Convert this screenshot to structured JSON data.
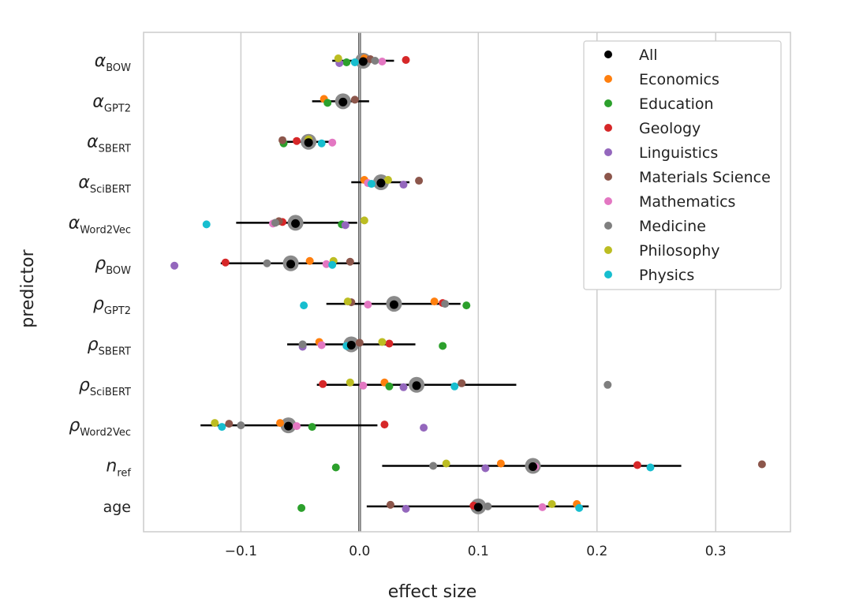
{
  "chart_data": {
    "type": "scatter",
    "title": "",
    "xlabel": "effect size",
    "ylabel": "predictor",
    "xlim": [
      -0.182,
      0.363
    ],
    "xticks": [
      -0.1,
      0.0,
      0.1,
      0.2,
      0.3
    ],
    "xtick_labels": [
      "−0.1",
      "0.0",
      "0.1",
      "0.2",
      "0.3"
    ],
    "grid": "vertical",
    "legend_position": "top-right",
    "colors": {
      "All": "#000000",
      "Economics": "#ff7f0e",
      "Education": "#2ca02c",
      "Geology": "#d62728",
      "Linguistics": "#9467bd",
      "Materials Science": "#8c564b",
      "Mathematics": "#e377c2",
      "Medicine": "#7f7f7f",
      "Philosophy": "#bcbd22",
      "Physics": "#17becf",
      "large_marker": "#8a8a8a"
    },
    "legend": [
      "All",
      "Economics",
      "Education",
      "Geology",
      "Linguistics",
      "Materials Science",
      "Mathematics",
      "Medicine",
      "Philosophy",
      "Physics"
    ],
    "fields": [
      "Economics",
      "Education",
      "Geology",
      "Linguistics",
      "Materials Science",
      "Mathematics",
      "Medicine",
      "Philosophy",
      "Physics"
    ],
    "predictors": [
      {
        "sym": "α",
        "sub": "BOW",
        "all": 0.003,
        "ci": [
          -0.023,
          0.029
        ],
        "values": [
          0.004,
          -0.011,
          0.039,
          -0.017,
          0.009,
          0.019,
          0.013,
          -0.018,
          -0.004
        ]
      },
      {
        "sym": "α",
        "sub": "GPT2",
        "all": -0.014,
        "ci": [
          -0.04,
          0.008
        ],
        "values": [
          -0.03,
          -0.027,
          null,
          null,
          -0.004,
          null,
          -0.014,
          null,
          null
        ]
      },
      {
        "sym": "α",
        "sub": "SBERT",
        "all": -0.043,
        "ci": [
          -0.065,
          -0.024
        ],
        "values": [
          -0.043,
          -0.064,
          -0.053,
          null,
          -0.065,
          -0.023,
          null,
          -0.043,
          -0.032
        ]
      },
      {
        "sym": "α",
        "sub": "SciBERT",
        "all": 0.018,
        "ci": [
          -0.007,
          0.042
        ],
        "values": [
          0.004,
          null,
          null,
          0.037,
          0.05,
          0.007,
          0.018,
          0.024,
          0.01
        ]
      },
      {
        "sym": "α",
        "sub": "Word2Vec",
        "all": -0.054,
        "ci": [
          -0.104,
          -0.002
        ],
        "values": [
          null,
          -0.015,
          -0.065,
          -0.012,
          -0.068,
          -0.073,
          -0.071,
          0.004,
          -0.129
        ]
      },
      {
        "sym": "ρ",
        "sub": "BOW",
        "all": -0.058,
        "ci": [
          -0.117,
          0.0
        ],
        "values": [
          -0.042,
          null,
          -0.113,
          -0.156,
          -0.008,
          -0.028,
          -0.078,
          -0.022,
          -0.023
        ]
      },
      {
        "sym": "ρ",
        "sub": "GPT2",
        "all": 0.029,
        "ci": [
          -0.028,
          0.085
        ],
        "values": [
          0.063,
          0.09,
          0.07,
          null,
          -0.007,
          0.007,
          0.072,
          -0.01,
          -0.047
        ]
      },
      {
        "sym": "ρ",
        "sub": "SBERT",
        "all": -0.007,
        "ci": [
          -0.061,
          0.047
        ],
        "values": [
          -0.034,
          0.07,
          0.025,
          -0.048,
          0.0,
          -0.032,
          -0.048,
          0.019,
          -0.011
        ]
      },
      {
        "sym": "ρ",
        "sub": "SciBERT",
        "all": 0.048,
        "ci": [
          -0.036,
          0.132
        ],
        "values": [
          0.021,
          0.025,
          -0.031,
          0.037,
          0.086,
          0.003,
          0.209,
          -0.008,
          0.08
        ]
      },
      {
        "sym": "ρ",
        "sub": "Word2Vec",
        "all": -0.06,
        "ci": [
          -0.134,
          0.015
        ],
        "values": [
          -0.067,
          -0.04,
          0.021,
          0.054,
          -0.11,
          -0.053,
          -0.1,
          -0.122,
          -0.116
        ]
      },
      {
        "sym": "n",
        "sub": "ref",
        "all": 0.146,
        "ci": [
          0.019,
          0.271
        ],
        "values": [
          0.119,
          -0.02,
          0.234,
          0.106,
          0.339,
          0.148,
          0.062,
          0.073,
          0.245
        ]
      },
      {
        "sym": "",
        "sub": "",
        "label": "age",
        "all": 0.1,
        "ci": [
          0.006,
          0.193
        ],
        "values": [
          0.183,
          -0.049,
          0.096,
          0.039,
          0.026,
          0.154,
          0.108,
          0.162,
          0.185
        ]
      }
    ]
  }
}
